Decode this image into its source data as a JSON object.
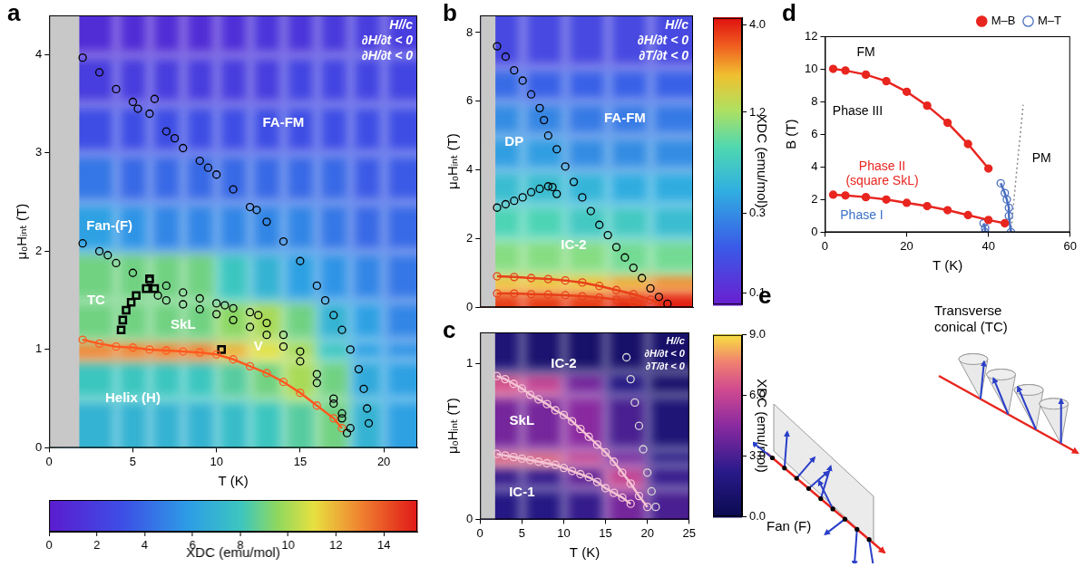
{
  "chart_data": [
    {
      "panel": "a",
      "type": "scatter",
      "x_label": "T (K)",
      "y_label": "μ₀Hᵢₙₜ (T)",
      "xlim": [
        0,
        22
      ],
      "xticks": [
        0,
        5,
        10,
        15,
        20
      ],
      "ylim": [
        0,
        4.4
      ],
      "yticks": [
        0,
        1,
        2,
        3,
        4
      ],
      "grid": false,
      "corner_text": [
        "H//c",
        "∂H/∂t < 0",
        "∂H/∂t < 0"
      ],
      "labels": [
        {
          "text": "FA-FM",
          "x": 14,
          "y": 3.3,
          "color": "#ffffff"
        },
        {
          "text": "Fan-(F)",
          "x": 3.6,
          "y": 2.25,
          "color": "#ffffff"
        },
        {
          "text": "TC",
          "x": 2.8,
          "y": 1.5,
          "color": "#ffffff"
        },
        {
          "text": "SkL",
          "x": 8,
          "y": 1.25,
          "color": "#ffffff"
        },
        {
          "text": "V",
          "x": 12.5,
          "y": 1.03,
          "color": "#ffffff"
        },
        {
          "text": "Helix (H)",
          "x": 5,
          "y": 0.5,
          "color": "#ffffff"
        }
      ],
      "gray_band_x": [
        0,
        1.8
      ],
      "heatmap": {
        "x_edges": [
          1.8,
          4,
          6,
          8,
          10,
          12,
          14,
          16,
          18,
          20,
          22
        ],
        "y_edges": [
          0,
          0.5,
          0.9,
          1.1,
          1.5,
          2.0,
          2.5,
          3.0,
          3.5,
          4.0,
          4.4
        ],
        "z": [
          [
            7,
            7,
            7,
            7,
            7.5,
            8,
            8.5,
            9,
            7,
            6
          ],
          [
            8,
            8,
            8,
            8,
            8.5,
            9,
            10,
            9,
            6.5,
            6
          ],
          [
            13,
            13,
            13,
            13,
            12,
            11,
            10,
            8,
            6,
            5.5
          ],
          [
            9,
            9,
            9,
            9,
            9.5,
            10,
            9,
            7,
            6,
            5
          ],
          [
            9,
            9,
            9,
            9,
            8,
            7,
            6,
            5.5,
            5,
            4.5
          ],
          [
            6,
            5.5,
            5,
            5,
            5,
            5,
            5,
            4.5,
            4,
            4
          ],
          [
            4.5,
            4,
            4,
            4,
            4,
            4,
            4,
            4,
            3.5,
            3.5
          ],
          [
            3,
            3,
            3,
            3,
            3,
            3,
            3,
            3,
            3,
            3
          ],
          [
            2,
            2,
            2,
            2,
            2,
            2,
            2.5,
            2.5,
            2.5,
            2.5
          ],
          [
            1,
            1,
            1,
            1,
            1.2,
            1.5,
            1.5,
            1.8,
            2,
            2
          ]
        ]
      },
      "colorbar": {
        "label": "XDC (emu/mol)",
        "range": [
          0,
          15.4
        ],
        "ticks": [
          0,
          2,
          4,
          6,
          8,
          10,
          12,
          14
        ]
      },
      "series": [
        {
          "color": "#000000",
          "marker": "circle_open",
          "line_style": "none",
          "x": [
            2,
            3,
            4,
            5,
            5.3,
            6,
            6.3,
            7,
            7.5,
            8,
            9,
            9.5,
            10,
            11,
            12,
            12.4,
            13,
            14,
            15,
            16,
            16.5,
            17,
            17.5,
            18,
            18.5,
            18.8,
            19,
            19.1
          ],
          "y": [
            3.97,
            3.82,
            3.65,
            3.52,
            3.45,
            3.4,
            3.55,
            3.22,
            3.15,
            3.05,
            2.92,
            2.85,
            2.78,
            2.63,
            2.45,
            2.42,
            2.3,
            2.1,
            1.9,
            1.65,
            1.5,
            1.35,
            1.2,
            1.0,
            0.8,
            0.6,
            0.4,
            0.25
          ]
        },
        {
          "color": "#000000",
          "marker": "circle_open",
          "line_style": "none",
          "x": [
            2,
            3,
            3.5,
            4,
            5,
            6,
            7,
            8,
            9,
            10,
            10.5,
            11,
            12,
            12.5,
            13,
            14,
            15,
            16,
            17,
            17.5,
            18
          ],
          "y": [
            2.08,
            2.0,
            1.96,
            1.88,
            1.78,
            1.7,
            1.65,
            1.58,
            1.52,
            1.47,
            1.45,
            1.42,
            1.38,
            1.35,
            1.27,
            1.15,
            0.98,
            0.75,
            0.5,
            0.35,
            0.2
          ]
        },
        {
          "color": "#000000",
          "marker": "circle_open",
          "line_style": "none",
          "x": [
            6.5,
            7,
            8,
            9,
            10,
            11,
            12,
            13,
            14,
            15,
            16,
            17,
            17.5,
            17.8
          ],
          "y": [
            1.55,
            1.5,
            1.46,
            1.41,
            1.36,
            1.3,
            1.23,
            1.15,
            1.03,
            0.88,
            0.66,
            0.45,
            0.3,
            0.15
          ]
        },
        {
          "color": "#ff5a1f",
          "marker": "circle_open",
          "line_style": "solid",
          "x": [
            2,
            3,
            4,
            5,
            6,
            7,
            8,
            9,
            10,
            11,
            12,
            13,
            14,
            15,
            16,
            17,
            17.5
          ],
          "y": [
            1.1,
            1.06,
            1.03,
            1.02,
            1.0,
            0.99,
            0.98,
            0.97,
            0.95,
            0.9,
            0.83,
            0.76,
            0.67,
            0.56,
            0.43,
            0.3,
            0.2
          ]
        },
        {
          "color": "#000000",
          "marker": "square_open",
          "line_style": "none",
          "x": [
            4.3,
            4.4,
            4.6,
            4.9,
            5.2,
            5.8,
            6.0,
            6.3,
            10.3
          ],
          "y": [
            1.2,
            1.3,
            1.4,
            1.48,
            1.55,
            1.62,
            1.72,
            1.62,
            1.0
          ]
        }
      ]
    },
    {
      "panel": "b",
      "type": "scatter",
      "y_label": "μ₀Hᵢₙₜ (T)",
      "xlim": [
        0,
        25
      ],
      "ylim": [
        0,
        8.5
      ],
      "yticks": [
        0,
        2,
        4,
        6,
        8
      ],
      "grid": false,
      "tick_labels": "y",
      "corner_text": [
        "H//c",
        "∂H/∂t < 0",
        "∂T/∂t < 0"
      ],
      "labels": [
        {
          "text": "DP",
          "x": 4,
          "y": 4.8,
          "color": "#ffffff"
        },
        {
          "text": "FA-FM",
          "x": 17,
          "y": 5.5,
          "color": "#ffffff"
        },
        {
          "text": "IC-2",
          "x": 11,
          "y": 1.8,
          "color": "#ffffff"
        }
      ],
      "gray_band_x": [
        0,
        1.8
      ],
      "heatmap": {
        "x_edges": [
          1.8,
          5,
          10,
          15,
          20,
          25
        ],
        "y_edges": [
          0,
          0.5,
          1,
          2,
          3,
          4,
          5,
          6,
          7,
          8.5
        ],
        "z": [
          [
            3.5,
            3.5,
            3.5,
            3.8,
            4.0
          ],
          [
            2.0,
            2.0,
            2.0,
            2.2,
            2.5
          ],
          [
            1.0,
            1.0,
            1.0,
            0.9,
            0.9
          ],
          [
            0.7,
            0.7,
            0.6,
            0.6,
            0.5
          ],
          [
            0.5,
            0.5,
            0.45,
            0.4,
            0.4
          ],
          [
            0.35,
            0.35,
            0.3,
            0.3,
            0.3
          ],
          [
            0.3,
            0.28,
            0.25,
            0.25,
            0.25
          ],
          [
            0.22,
            0.2,
            0.2,
            0.2,
            0.2
          ],
          [
            0.15,
            0.15,
            0.15,
            0.15,
            0.15
          ]
        ]
      },
      "colorbar": {
        "label": "XDC (emu/mol)",
        "log": true,
        "range": [
          0.085,
          4.4
        ],
        "ticks": [
          0.1,
          0.3,
          1.2,
          {
            "value": 4,
            "label": "4.0"
          }
        ]
      },
      "series": [
        {
          "color": "#000000",
          "marker": "circle_open",
          "line_style": "none",
          "x": [
            2,
            3,
            4,
            5,
            6,
            7,
            7.5,
            8,
            9,
            10,
            11,
            12,
            13,
            14,
            15,
            16,
            17,
            18,
            19,
            20,
            21,
            22
          ],
          "y": [
            7.6,
            7.3,
            6.9,
            6.6,
            6.2,
            5.8,
            5.45,
            5.0,
            4.6,
            4.1,
            3.65,
            3.2,
            2.8,
            2.4,
            2.1,
            1.75,
            1.45,
            1.15,
            0.85,
            0.55,
            0.3,
            0.1
          ]
        },
        {
          "color": "#000000",
          "marker": "circle_open",
          "line_style": "none",
          "x": [
            2,
            3,
            4,
            5,
            6,
            7,
            8,
            8.5,
            9
          ],
          "y": [
            2.9,
            3.0,
            3.1,
            3.2,
            3.35,
            3.45,
            3.52,
            3.5,
            3.3
          ]
        },
        {
          "color": "#e8401a",
          "marker": "circle_open",
          "line_style": "solid",
          "x": [
            2,
            4,
            6,
            8,
            10,
            12,
            14,
            16,
            18,
            20,
            21
          ],
          "y": [
            0.9,
            0.88,
            0.85,
            0.82,
            0.78,
            0.72,
            0.62,
            0.5,
            0.38,
            0.22,
            0.12
          ]
        },
        {
          "color": "#e8401a",
          "marker": "circle_open",
          "line_style": "solid",
          "x": [
            2,
            4,
            6,
            8,
            10,
            12,
            14,
            16,
            18,
            19
          ],
          "y": [
            0.4,
            0.4,
            0.38,
            0.37,
            0.35,
            0.32,
            0.28,
            0.22,
            0.15,
            0.1
          ]
        }
      ]
    },
    {
      "panel": "c",
      "type": "scatter",
      "x_label": "T (K)",
      "y_label": "μ₀Hᵢₙₜ (T)",
      "xlim": [
        0,
        25
      ],
      "xticks": [
        0,
        5,
        10,
        15,
        20,
        25
      ],
      "ylim": [
        0,
        1.2
      ],
      "yticks": [
        0,
        1
      ],
      "grid": false,
      "corner_text": [
        "H//c",
        "∂H/∂t < 0",
        "∂T/∂t < 0"
      ],
      "labels": [
        {
          "text": "IC-2",
          "x": 10,
          "y": 1.0,
          "color": "#ffffff"
        },
        {
          "text": "SkL",
          "x": 5,
          "y": 0.63,
          "color": "#ffffff"
        },
        {
          "text": "IC-1",
          "x": 5,
          "y": 0.17,
          "color": "#ffffff"
        }
      ],
      "gray_band_x": [
        0,
        1.8
      ],
      "heatmap": {
        "x_edges": [
          1.8,
          5,
          10,
          15,
          20,
          25
        ],
        "y_edges": [
          0,
          0.2,
          0.35,
          0.45,
          0.8,
          0.95,
          1.2
        ],
        "z": [
          [
            2,
            2,
            2.5,
            4,
            3
          ],
          [
            2.5,
            2.5,
            3.5,
            6,
            2.5
          ],
          [
            7,
            7,
            6,
            4,
            2
          ],
          [
            4,
            4,
            4.5,
            3,
            1.5
          ],
          [
            6.5,
            6,
            4,
            2,
            1
          ],
          [
            1.5,
            1.2,
            1,
            1,
            1
          ]
        ]
      },
      "colorbar": {
        "label": "XDC (emu/mol)",
        "range": [
          0,
          9
        ],
        "ticks": [
          {
            "value": 0,
            "label": "0.0"
          },
          {
            "value": 3,
            "label": "3.0"
          },
          {
            "value": 6,
            "label": "6.0"
          },
          {
            "value": 9,
            "label": "9.0"
          }
        ]
      },
      "series": [
        {
          "color": "#f4c4d4",
          "marker": "circle_open",
          "line_style": "solid",
          "x": [
            2,
            3,
            4,
            5,
            6,
            7,
            8,
            9,
            10,
            11,
            12,
            13,
            14,
            15,
            16,
            17,
            18,
            19,
            20
          ],
          "y": [
            0.92,
            0.9,
            0.87,
            0.84,
            0.8,
            0.77,
            0.74,
            0.7,
            0.67,
            0.63,
            0.58,
            0.53,
            0.48,
            0.43,
            0.37,
            0.3,
            0.23,
            0.15,
            0.08
          ]
        },
        {
          "color": "#f4c4d4",
          "marker": "circle_open",
          "line_style": "solid",
          "x": [
            2,
            3,
            4,
            5,
            6,
            7,
            8,
            9,
            10,
            11,
            12,
            13,
            14,
            15,
            16,
            17,
            18
          ],
          "y": [
            0.42,
            0.41,
            0.4,
            0.39,
            0.38,
            0.37,
            0.36,
            0.35,
            0.33,
            0.31,
            0.29,
            0.27,
            0.24,
            0.2,
            0.17,
            0.14,
            0.1
          ]
        },
        {
          "color": "#d8d8d8",
          "marker": "circle_open",
          "line_style": "none",
          "x": [
            17.5,
            18,
            18.5,
            19,
            19.5,
            20,
            20.5,
            21
          ],
          "y": [
            1.04,
            0.9,
            0.75,
            0.6,
            0.45,
            0.3,
            0.18,
            0.08
          ]
        }
      ]
    },
    {
      "panel": "d",
      "type": "line",
      "x_label": "T (K)",
      "y_label": "B (T)",
      "xlim": [
        0,
        60
      ],
      "xticks": [
        0,
        20,
        40,
        60
      ],
      "ylim": [
        0,
        12
      ],
      "yticks": [
        0,
        2,
        4,
        6,
        8,
        10,
        12
      ],
      "grid": false,
      "legend": "top-right",
      "labels": [
        {
          "text": "FM",
          "x": 10,
          "y": 11,
          "color": "#000000"
        },
        {
          "text": "Phase III",
          "x": 8,
          "y": 7.4,
          "color": "#000000"
        },
        {
          "text": "PM",
          "x": 53,
          "y": 4.5,
          "color": "#000000"
        },
        {
          "text": "Phase II (square SkL)",
          "x": 14,
          "y": 4.0,
          "color": "#e8251f"
        },
        {
          "text": "Phase I",
          "x": 9,
          "y": 1.0,
          "color": "#3a6fc8"
        }
      ],
      "series": [
        {
          "name": "M–B",
          "color": "#e8251f",
          "marker": "circle_filled",
          "line_style": "solid",
          "x": [
            2,
            5,
            10,
            15,
            20,
            25,
            30,
            35,
            40,
            null,
            2,
            5,
            10,
            15,
            20,
            25,
            30,
            35,
            40,
            44
          ],
          "y": [
            10,
            9.9,
            9.65,
            9.25,
            8.6,
            7.75,
            6.7,
            5.4,
            3.9,
            null,
            2.3,
            2.25,
            2.15,
            2.0,
            1.8,
            1.6,
            1.35,
            1.05,
            0.75,
            0.55
          ]
        },
        {
          "name": "M–T",
          "color": "#4a6fc0",
          "marker": "circle_open",
          "line_style": "solid",
          "x": [
            43,
            44,
            44.5,
            45,
            45,
            45.5,
            null,
            38.8,
            39.2,
            39.2
          ],
          "y": [
            3.0,
            2.4,
            2.0,
            1.5,
            1.0,
            0.0,
            null,
            0.55,
            0.25,
            0.0
          ]
        },
        {
          "color": "#888888",
          "marker": "none",
          "line_style": "dotted",
          "x": [
            45.5,
            47,
            48.5
          ],
          "y": [
            0,
            4,
            7.8
          ]
        }
      ]
    }
  ],
  "diagram": {
    "panel": "e",
    "labels": [
      "Fan (F)",
      "Transverse conical (TC)"
    ]
  }
}
